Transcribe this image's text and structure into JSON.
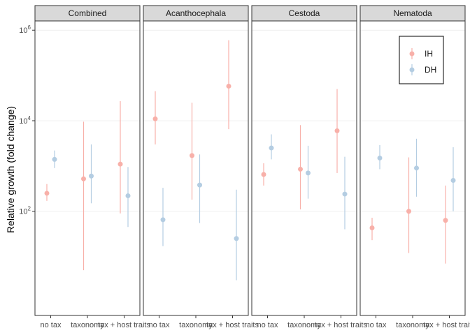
{
  "chart_data": {
    "type": "scatter",
    "subtype": "faceted point-range",
    "title": "",
    "ylabel": "Relative growth (fold change)",
    "xlabel": "",
    "y_scale": "log10",
    "ylim": [
      0.5,
      1600000
    ],
    "y_ticks": [
      {
        "value": 100,
        "base": "10",
        "exp": "2"
      },
      {
        "value": 10000,
        "base": "10",
        "exp": "4"
      },
      {
        "value": 1000000,
        "base": "10",
        "exp": "6"
      }
    ],
    "categories": [
      "no tax",
      "taxonomy",
      "tax + host traits"
    ],
    "facets": [
      "Combined",
      "Acanthocephala",
      "Cestoda",
      "Nematoda"
    ],
    "legend": {
      "position": "top-right",
      "entries": [
        "IH",
        "DH"
      ]
    },
    "grid": true,
    "colors": {
      "IH": "#f8b0a9",
      "DH": "#b4cde2"
    },
    "series": [
      {
        "name": "IH",
        "values": [
          {
            "facet": "Combined",
            "category": "no tax",
            "y": 250,
            "low": 170,
            "high": 400
          },
          {
            "facet": "Combined",
            "category": "taxonomy",
            "y": 520,
            "low": 5,
            "high": 9500
          },
          {
            "facet": "Combined",
            "category": "tax + host traits",
            "y": 1100,
            "low": 90,
            "high": 27000
          },
          {
            "facet": "Acanthocephala",
            "category": "no tax",
            "y": 11000,
            "low": 3000,
            "high": 45000
          },
          {
            "facet": "Acanthocephala",
            "category": "taxonomy",
            "y": 1700,
            "low": 180,
            "high": 25000
          },
          {
            "facet": "Acanthocephala",
            "category": "tax + host traits",
            "y": 58000,
            "low": 6500,
            "high": 600000
          },
          {
            "facet": "Cestoda",
            "category": "no tax",
            "y": 650,
            "low": 370,
            "high": 1150
          },
          {
            "facet": "Cestoda",
            "category": "taxonomy",
            "y": 850,
            "low": 110,
            "high": 8000
          },
          {
            "facet": "Cestoda",
            "category": "tax + host traits",
            "y": 6000,
            "low": 700,
            "high": 50000
          },
          {
            "facet": "Nematoda",
            "category": "no tax",
            "y": 43,
            "low": 23,
            "high": 72
          },
          {
            "facet": "Nematoda",
            "category": "taxonomy",
            "y": 100,
            "low": 12,
            "high": 1550
          },
          {
            "facet": "Nematoda",
            "category": "tax + host traits",
            "y": 63,
            "low": 7,
            "high": 370
          }
        ]
      },
      {
        "name": "DH",
        "values": [
          {
            "facet": "Combined",
            "category": "no tax",
            "y": 1400,
            "low": 900,
            "high": 2200
          },
          {
            "facet": "Combined",
            "category": "taxonomy",
            "y": 600,
            "low": 150,
            "high": 3000
          },
          {
            "facet": "Combined",
            "category": "tax + host traits",
            "y": 220,
            "low": 45,
            "high": 950
          },
          {
            "facet": "Acanthocephala",
            "category": "no tax",
            "y": 65,
            "low": 17,
            "high": 330
          },
          {
            "facet": "Acanthocephala",
            "category": "taxonomy",
            "y": 380,
            "low": 55,
            "high": 1800
          },
          {
            "facet": "Acanthocephala",
            "category": "tax + host traits",
            "y": 25,
            "low": 3,
            "high": 300
          },
          {
            "facet": "Cestoda",
            "category": "no tax",
            "y": 2500,
            "low": 1400,
            "high": 5000
          },
          {
            "facet": "Cestoda",
            "category": "taxonomy",
            "y": 700,
            "low": 190,
            "high": 2800
          },
          {
            "facet": "Cestoda",
            "category": "tax + host traits",
            "y": 240,
            "low": 40,
            "high": 1600
          },
          {
            "facet": "Nematoda",
            "category": "no tax",
            "y": 1500,
            "low": 850,
            "high": 2900
          },
          {
            "facet": "Nematoda",
            "category": "taxonomy",
            "y": 900,
            "low": 210,
            "high": 4000
          },
          {
            "facet": "Nematoda",
            "category": "tax + host traits",
            "y": 480,
            "low": 100,
            "high": 2600
          }
        ]
      }
    ]
  }
}
